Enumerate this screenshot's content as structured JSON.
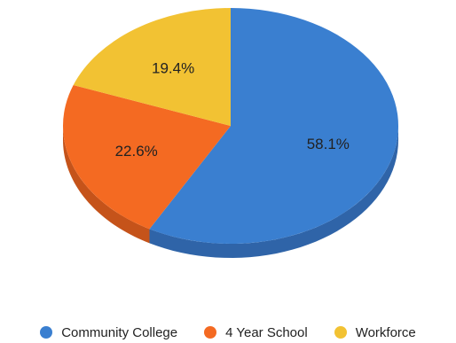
{
  "chart_data": {
    "type": "pie",
    "title": "",
    "slices": [
      {
        "label": "Community College",
        "value": 58.1,
        "display": "58.1%",
        "color": "#3a7fd0",
        "side_color": "#2f64a8"
      },
      {
        "label": "4 Year School",
        "value": 22.6,
        "display": "22.6%",
        "color": "#f46a22",
        "side_color": "#c5531a"
      },
      {
        "label": "Workforce",
        "value": 19.4,
        "display": "19.4%",
        "color": "#f2c233",
        "side_color": "#c79d24"
      }
    ],
    "legend_position": "bottom",
    "three_d": true
  }
}
